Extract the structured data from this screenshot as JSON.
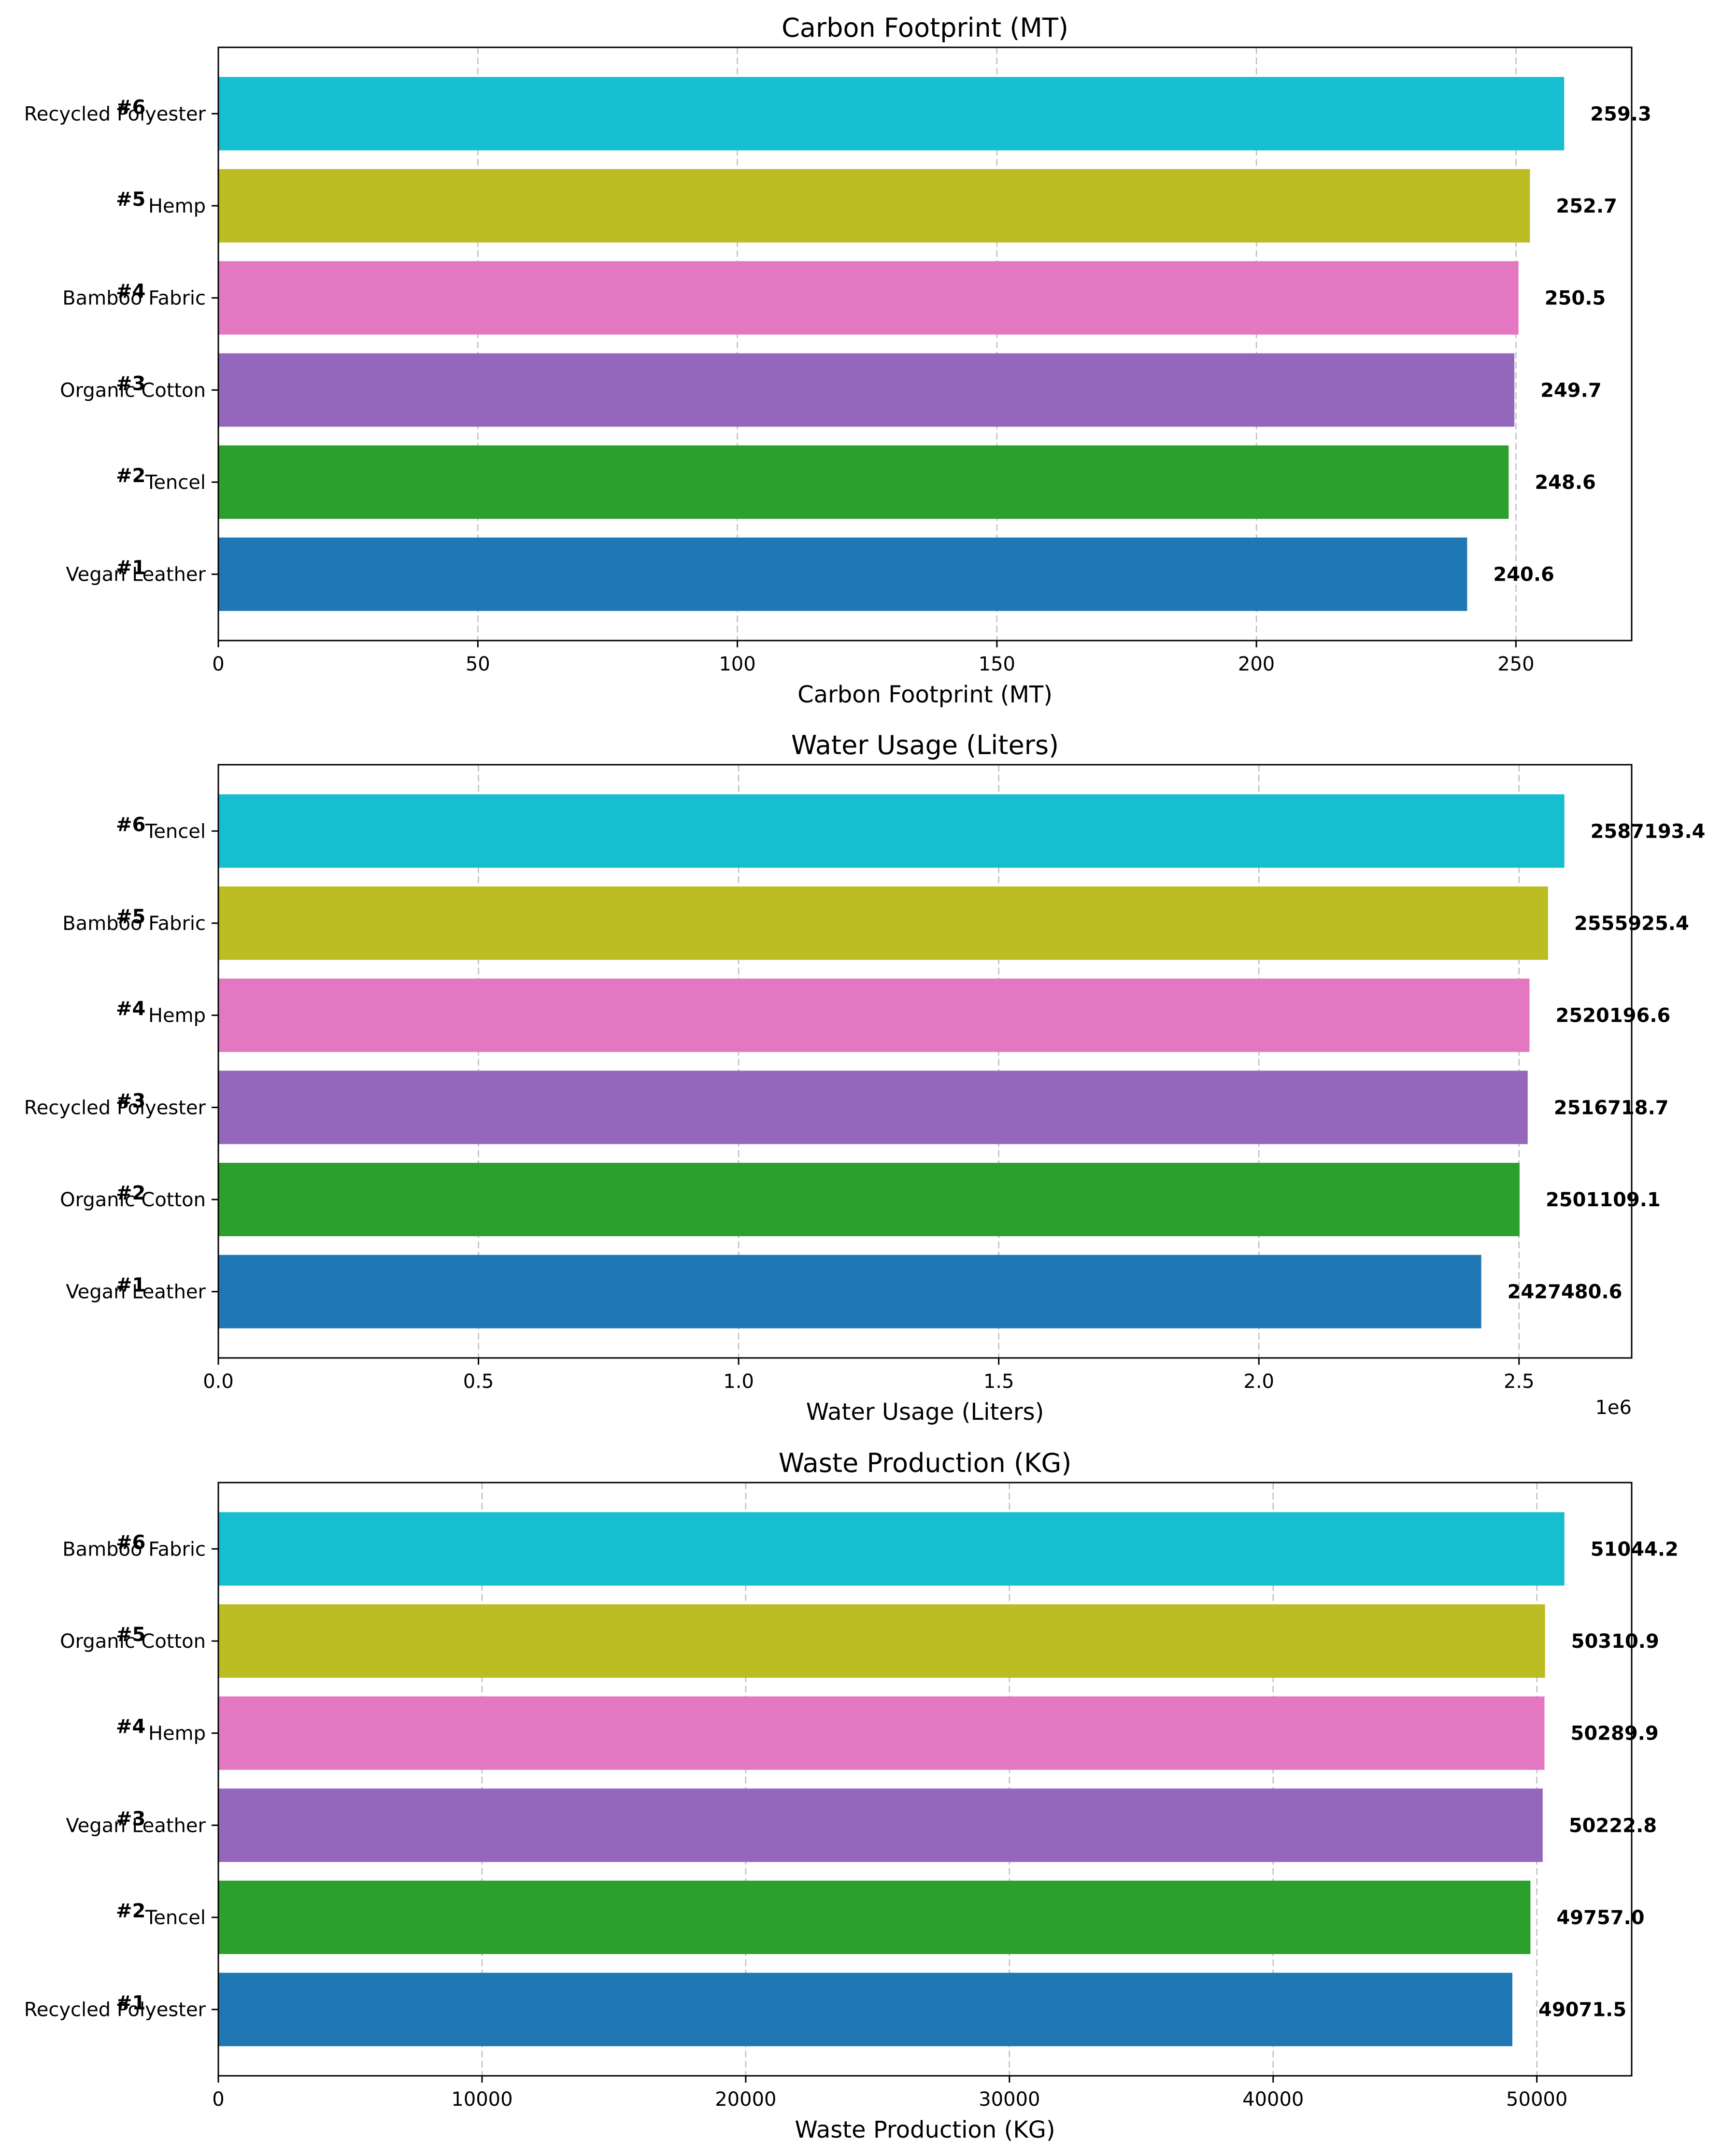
{
  "chart_data": [
    {
      "type": "bar",
      "orientation": "horizontal",
      "title": "Carbon Footprint (MT)",
      "xlabel": "Carbon Footprint (MT)",
      "ylabel": "",
      "xlim": [
        0,
        272.3
      ],
      "xticks": [
        0,
        50,
        100,
        150,
        200,
        250
      ],
      "xtick_labels": [
        "0",
        "50",
        "100",
        "150",
        "200",
        "250"
      ],
      "offset_label": "",
      "grid": "x-dashed",
      "categories": [
        "Vegan Leather",
        "Tencel",
        "Organic Cotton",
        "Bamboo Fabric",
        "Hemp",
        "Recycled Polyester"
      ],
      "ranks": [
        "#1",
        "#2",
        "#3",
        "#4",
        "#5",
        "#6"
      ],
      "values": [
        240.6,
        248.6,
        249.7,
        250.5,
        252.7,
        259.3
      ],
      "value_labels": [
        "240.6",
        "248.6",
        "249.7",
        "250.5",
        "252.7",
        "259.3"
      ],
      "colors": [
        "#1f77b4",
        "#2ca02c",
        "#9467bd",
        "#e377c2",
        "#bcbd22",
        "#17becf"
      ]
    },
    {
      "type": "bar",
      "orientation": "horizontal",
      "title": "Water Usage (Liters)",
      "xlabel": "Water Usage (Liters)",
      "ylabel": "",
      "xlim": [
        0,
        2716553
      ],
      "xticks": [
        0,
        500000,
        1000000,
        1500000,
        2000000,
        2500000
      ],
      "xtick_labels": [
        "0.0",
        "0.5",
        "1.0",
        "1.5",
        "2.0",
        "2.5"
      ],
      "offset_label": "1e6",
      "grid": "x-dashed",
      "categories": [
        "Vegan Leather",
        "Organic Cotton",
        "Recycled Polyester",
        "Hemp",
        "Bamboo Fabric",
        "Tencel"
      ],
      "ranks": [
        "#1",
        "#2",
        "#3",
        "#4",
        "#5",
        "#6"
      ],
      "values": [
        2427480.6,
        2501109.1,
        2516718.7,
        2520196.6,
        2555925.4,
        2587193.4
      ],
      "value_labels": [
        "2427480.6",
        "2501109.1",
        "2516718.7",
        "2520196.6",
        "2555925.4",
        "2587193.4"
      ],
      "colors": [
        "#1f77b4",
        "#2ca02c",
        "#9467bd",
        "#e377c2",
        "#bcbd22",
        "#17becf"
      ]
    },
    {
      "type": "bar",
      "orientation": "horizontal",
      "title": "Waste Production (KG)",
      "xlabel": "Waste Production (KG)",
      "ylabel": "",
      "xlim": [
        0,
        53596
      ],
      "xticks": [
        0,
        10000,
        20000,
        30000,
        40000,
        50000
      ],
      "xtick_labels": [
        "0",
        "10000",
        "20000",
        "30000",
        "40000",
        "50000"
      ],
      "offset_label": "",
      "grid": "x-dashed",
      "categories": [
        "Recycled Polyester",
        "Tencel",
        "Vegan Leather",
        "Hemp",
        "Organic Cotton",
        "Bamboo Fabric"
      ],
      "ranks": [
        "#1",
        "#2",
        "#3",
        "#4",
        "#5",
        "#6"
      ],
      "values": [
        49071.5,
        49757.0,
        50222.8,
        50289.9,
        50310.9,
        51044.2
      ],
      "value_labels": [
        "49071.5",
        "49757.0",
        "50222.8",
        "50289.9",
        "50310.9",
        "51044.2"
      ],
      "colors": [
        "#1f77b4",
        "#2ca02c",
        "#9467bd",
        "#e377c2",
        "#bcbd22",
        "#17becf"
      ]
    }
  ]
}
